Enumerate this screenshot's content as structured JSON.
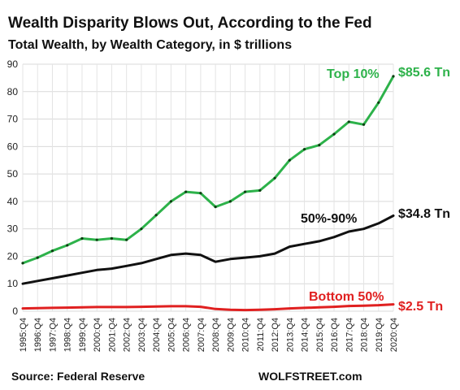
{
  "chart_data": {
    "type": "line",
    "title": "Wealth Disparity Blows Out, According to the Fed",
    "subtitle": "Total Wealth, by Wealth Category, in $ trillions",
    "xlabel": "",
    "ylabel": "",
    "ylim": [
      0,
      90
    ],
    "yticks": [
      "0",
      "10",
      "20",
      "30",
      "40",
      "50",
      "60",
      "70",
      "80",
      "90"
    ],
    "xticks": [
      "1995:Q4",
      "1996:Q4",
      "1997:Q4",
      "1998:Q4",
      "1999:Q4",
      "2000:Q4",
      "2001:Q4",
      "2002:Q4",
      "2003:Q4",
      "2004:Q4",
      "2005:Q4",
      "2006:Q4",
      "2007:Q4",
      "2008:Q4",
      "2009:Q4",
      "2010:Q4",
      "2011:Q4",
      "2012:Q4",
      "2013:Q4",
      "2014:Q4",
      "2015:Q4",
      "2016:Q4",
      "2017:Q4",
      "2018:Q4",
      "2019:Q4",
      "2020:Q4"
    ],
    "grid": true,
    "x": [
      1995.75,
      1996.75,
      1997.75,
      1998.75,
      1999.75,
      2000.75,
      2001.75,
      2002.75,
      2003.75,
      2004.75,
      2005.75,
      2006.75,
      2007.75,
      2008.75,
      2009.75,
      2010.75,
      2011.75,
      2012.75,
      2013.75,
      2014.75,
      2015.75,
      2016.75,
      2017.75,
      2018.75,
      2019.75,
      2020.75
    ],
    "series": [
      {
        "name": "Top 10%",
        "color": "#2db24a",
        "end_label": "$85.6 Tn",
        "values": [
          17.5,
          19.5,
          22.0,
          24.0,
          26.5,
          26.0,
          26.5,
          26.0,
          30.0,
          35.0,
          40.0,
          43.5,
          43.0,
          38.0,
          40.0,
          43.5,
          44.0,
          48.5,
          55.0,
          59.0,
          60.5,
          64.5,
          69.0,
          68.0,
          76.0,
          85.6
        ]
      },
      {
        "name": "50%-90%",
        "color": "#111111",
        "end_label": "$34.8 Tn",
        "values": [
          10.0,
          11.0,
          12.0,
          13.0,
          14.0,
          15.0,
          15.5,
          16.5,
          17.5,
          19.0,
          20.5,
          21.0,
          20.5,
          18.0,
          19.0,
          19.5,
          20.0,
          21.0,
          23.5,
          24.5,
          25.5,
          27.0,
          29.0,
          30.0,
          32.0,
          34.8
        ]
      },
      {
        "name": "Bottom 50%",
        "color": "#e02020",
        "end_label": "$2.5 Tn",
        "values": [
          1.0,
          1.1,
          1.2,
          1.3,
          1.4,
          1.5,
          1.5,
          1.5,
          1.6,
          1.7,
          1.8,
          1.8,
          1.6,
          0.8,
          0.5,
          0.4,
          0.5,
          0.7,
          1.0,
          1.2,
          1.4,
          1.6,
          1.9,
          2.0,
          2.2,
          2.5
        ]
      }
    ],
    "source": "Source: Federal Reserve",
    "brand": "WOLFSTREET.com"
  }
}
